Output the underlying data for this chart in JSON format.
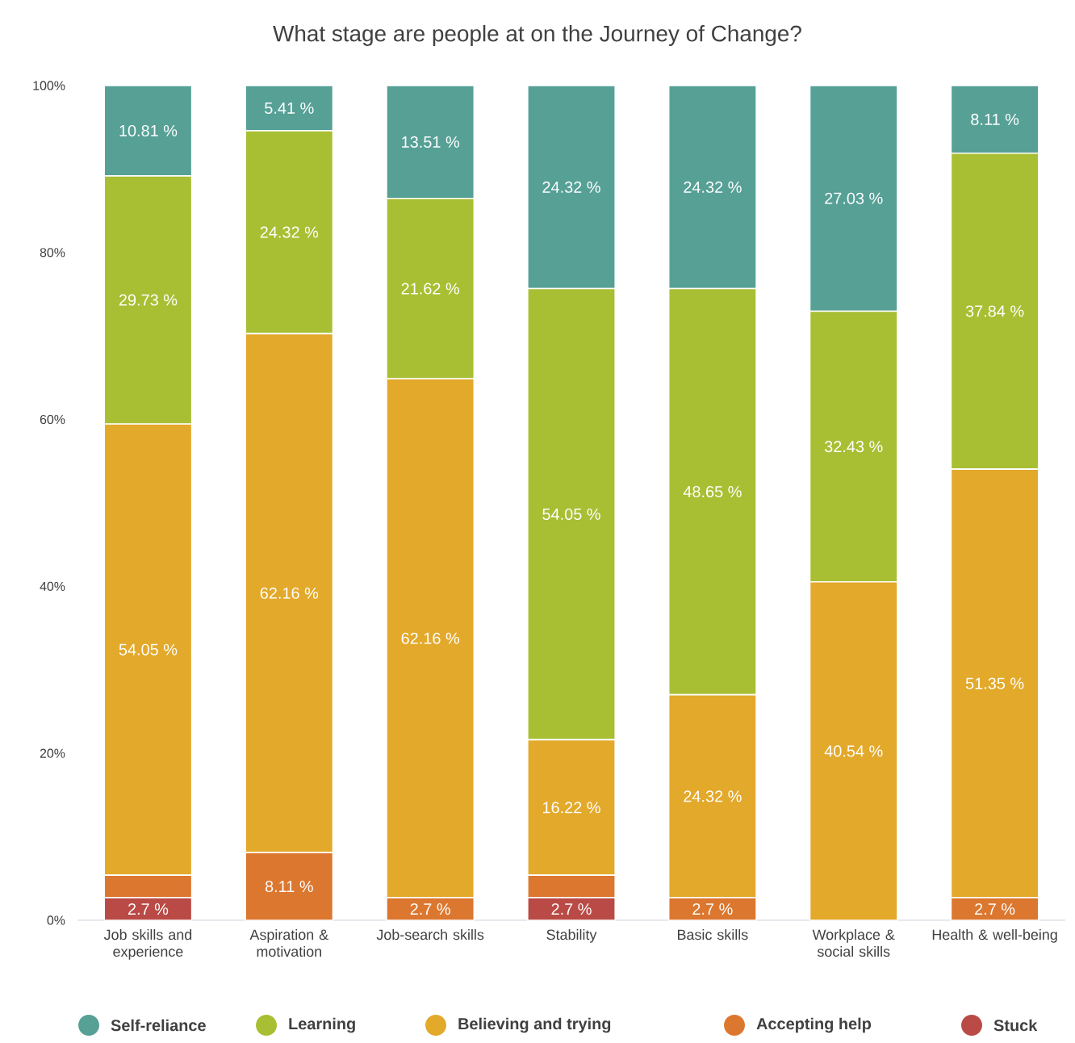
{
  "chart_data": {
    "type": "bar",
    "stacked": true,
    "title": "What stage are people at on the Journey of Change?",
    "categories": [
      "Job skills and experience",
      "Aspiration & motivation",
      "Job-search skills",
      "Stability",
      "Basic skills",
      "Workplace & social skills",
      "Health & well-being"
    ],
    "ylim": [
      0,
      100
    ],
    "yticks": [
      {
        "value": 0,
        "label": "0%"
      },
      {
        "value": 20,
        "label": "20%"
      },
      {
        "value": 40,
        "label": "40%"
      },
      {
        "value": 60,
        "label": "60%"
      },
      {
        "value": 80,
        "label": "80%"
      },
      {
        "value": 100,
        "label": "100%"
      }
    ],
    "legend": "bottom",
    "series": [
      {
        "name": "Stuck",
        "color": "#b94a45",
        "values": [
          2.7,
          null,
          null,
          2.7,
          null,
          null,
          null
        ],
        "value_labels": [
          "2.7 %",
          null,
          null,
          "2.7 %",
          null,
          null,
          null
        ]
      },
      {
        "name": "Accepting help",
        "color": "#dc772f",
        "values": [
          2.7,
          8.11,
          2.7,
          2.7,
          2.7,
          null,
          2.7
        ],
        "value_labels": [
          null,
          "8.11 %",
          "2.7 %",
          null,
          "2.7 %",
          null,
          "2.7 %"
        ]
      },
      {
        "name": "Believing and trying",
        "color": "#e3a92b",
        "values": [
          54.05,
          62.16,
          62.16,
          16.22,
          24.32,
          40.54,
          51.35
        ],
        "value_labels": [
          "54.05 %",
          "62.16 %",
          "62.16 %",
          "16.22 %",
          "24.32 %",
          "40.54 %",
          "51.35 %"
        ]
      },
      {
        "name": "Learning",
        "color": "#a8bf33",
        "values": [
          29.73,
          24.32,
          21.62,
          54.05,
          48.65,
          32.43,
          37.84
        ],
        "value_labels": [
          "29.73 %",
          "24.32 %",
          "21.62 %",
          "54.05 %",
          "48.65 %",
          "32.43 %",
          "37.84 %"
        ]
      },
      {
        "name": "Self-reliance",
        "color": "#56a096",
        "values": [
          10.81,
          5.41,
          13.51,
          24.32,
          24.32,
          27.03,
          8.11
        ],
        "value_labels": [
          "10.81 %",
          "5.41 %",
          "13.51 %",
          "24.32 %",
          "24.32 %",
          "27.03 %",
          "8.11 %"
        ]
      }
    ]
  }
}
